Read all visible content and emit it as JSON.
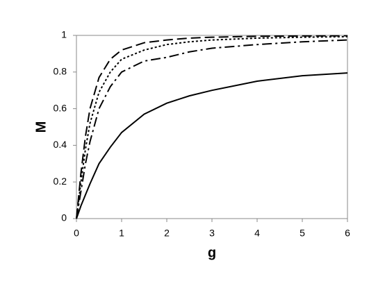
{
  "chart_data": {
    "type": "line",
    "xlabel": "g",
    "ylabel": "M",
    "x": [
      0,
      0.1,
      0.2,
      0.3,
      0.5,
      0.75,
      1,
      1.5,
      2,
      2.5,
      3,
      4,
      5,
      6
    ],
    "series": [
      {
        "color": "#000000",
        "values": [
          0,
          0.07,
          0.13,
          0.19,
          0.3,
          0.39,
          0.47,
          0.57,
          0.63,
          0.67,
          0.7,
          0.75,
          0.78,
          0.795
        ]
      },
      {
        "color": "#000000",
        "dash": "14 5 3 5",
        "values": [
          0,
          0.15,
          0.3,
          0.42,
          0.6,
          0.72,
          0.8,
          0.86,
          0.88,
          0.91,
          0.93,
          0.95,
          0.965,
          0.975
        ]
      },
      {
        "color": "#000000",
        "dash": "3 3",
        "values": [
          0,
          0.2,
          0.38,
          0.52,
          0.69,
          0.8,
          0.87,
          0.92,
          0.95,
          0.965,
          0.975,
          0.985,
          0.99,
          0.993
        ]
      },
      {
        "color": "#000000",
        "dash": "14 6",
        "values": [
          0,
          0.25,
          0.45,
          0.6,
          0.77,
          0.87,
          0.92,
          0.96,
          0.975,
          0.985,
          0.99,
          0.995,
          0.997,
          0.998
        ]
      }
    ],
    "xlim": [
      0,
      6
    ],
    "xticks": [
      0,
      1,
      2,
      3,
      4,
      5,
      6
    ],
    "ylim": [
      0,
      1
    ],
    "yticks": [
      0,
      0.2,
      0.4,
      0.6,
      0.8,
      1
    ],
    "grid": false
  }
}
